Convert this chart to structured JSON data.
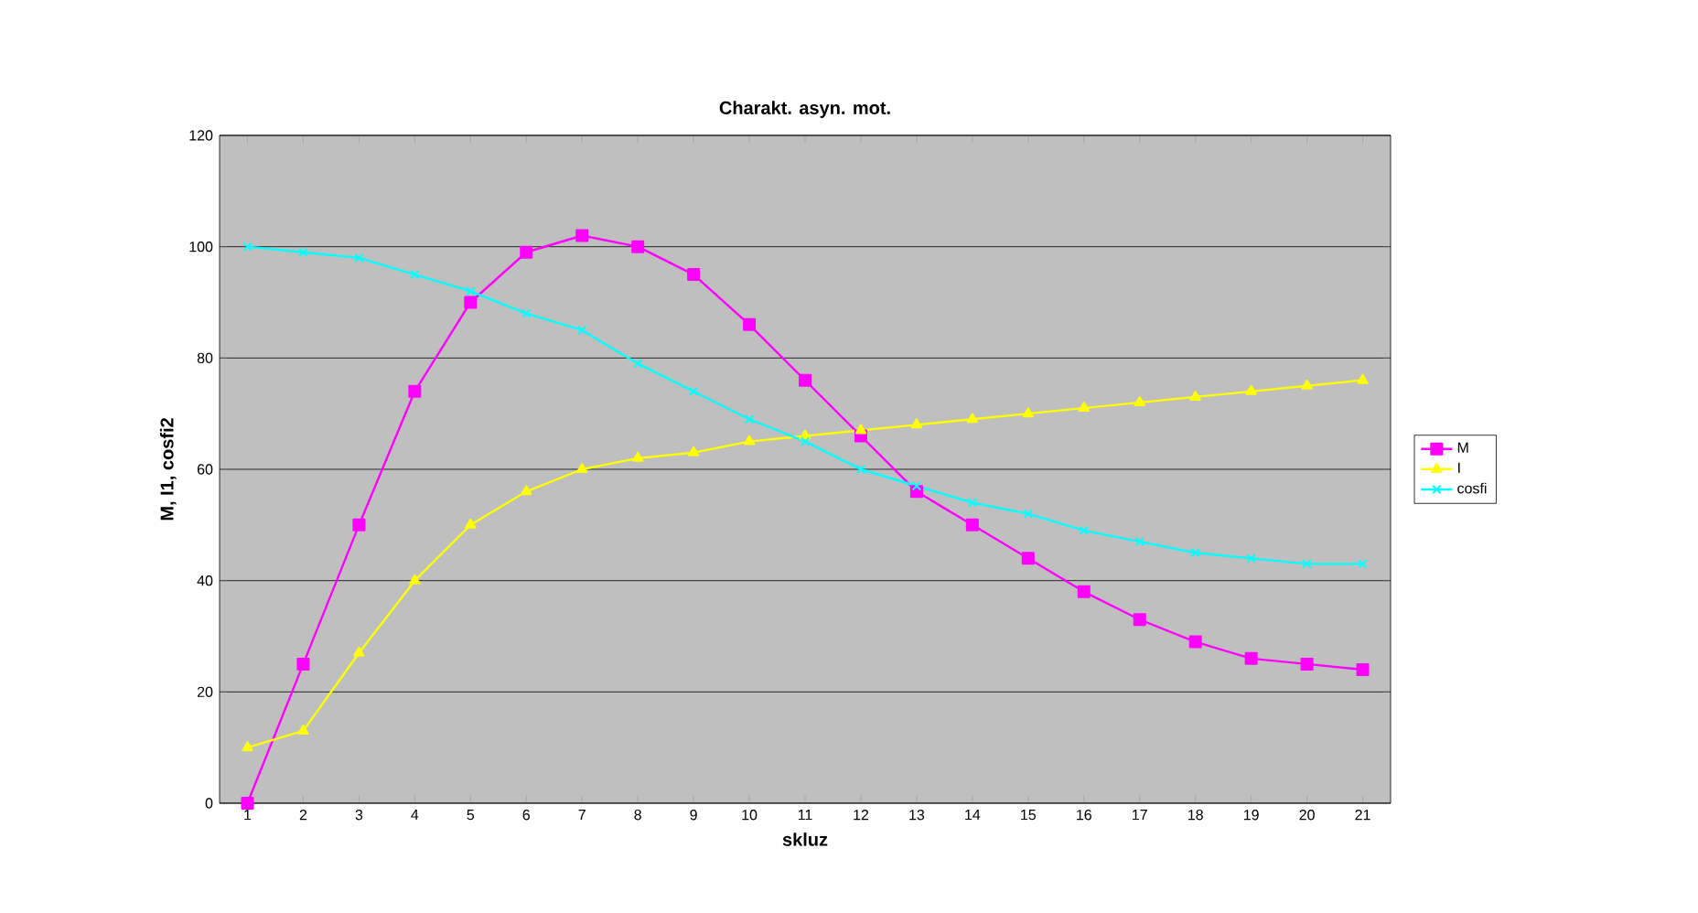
{
  "chart_data": {
    "type": "line",
    "title": "Charakt. asyn. mot.",
    "xlabel": "skluz",
    "ylabel": "M, I1, cosfi2",
    "categories": [
      "1",
      "2",
      "3",
      "4",
      "5",
      "6",
      "7",
      "8",
      "9",
      "10",
      "11",
      "12",
      "13",
      "14",
      "15",
      "16",
      "17",
      "18",
      "19",
      "20",
      "21"
    ],
    "series": [
      {
        "name": "M",
        "color": "#ff00ff",
        "marker": "square",
        "values": [
          0,
          25,
          50,
          74,
          90,
          99,
          102,
          100,
          95,
          86,
          76,
          66,
          56,
          50,
          44,
          38,
          33,
          29,
          26,
          25,
          24
        ]
      },
      {
        "name": "I",
        "color": "#ffff00",
        "marker": "triangle",
        "values": [
          10,
          13,
          27,
          40,
          50,
          56,
          60,
          62,
          63,
          65,
          66,
          67,
          68,
          69,
          70,
          71,
          72,
          73,
          74,
          75,
          76
        ]
      },
      {
        "name": "cosfi",
        "color": "#00ffff",
        "marker": "cross",
        "values": [
          100,
          99,
          98,
          95,
          92,
          88,
          85,
          79,
          74,
          69,
          65,
          60,
          57,
          54,
          52,
          49,
          47,
          45,
          44,
          43,
          43
        ]
      }
    ],
    "ylim": [
      0,
      120
    ],
    "yticks": [
      0,
      20,
      40,
      60,
      80,
      100,
      120
    ],
    "grid": "y",
    "legend": "right"
  }
}
